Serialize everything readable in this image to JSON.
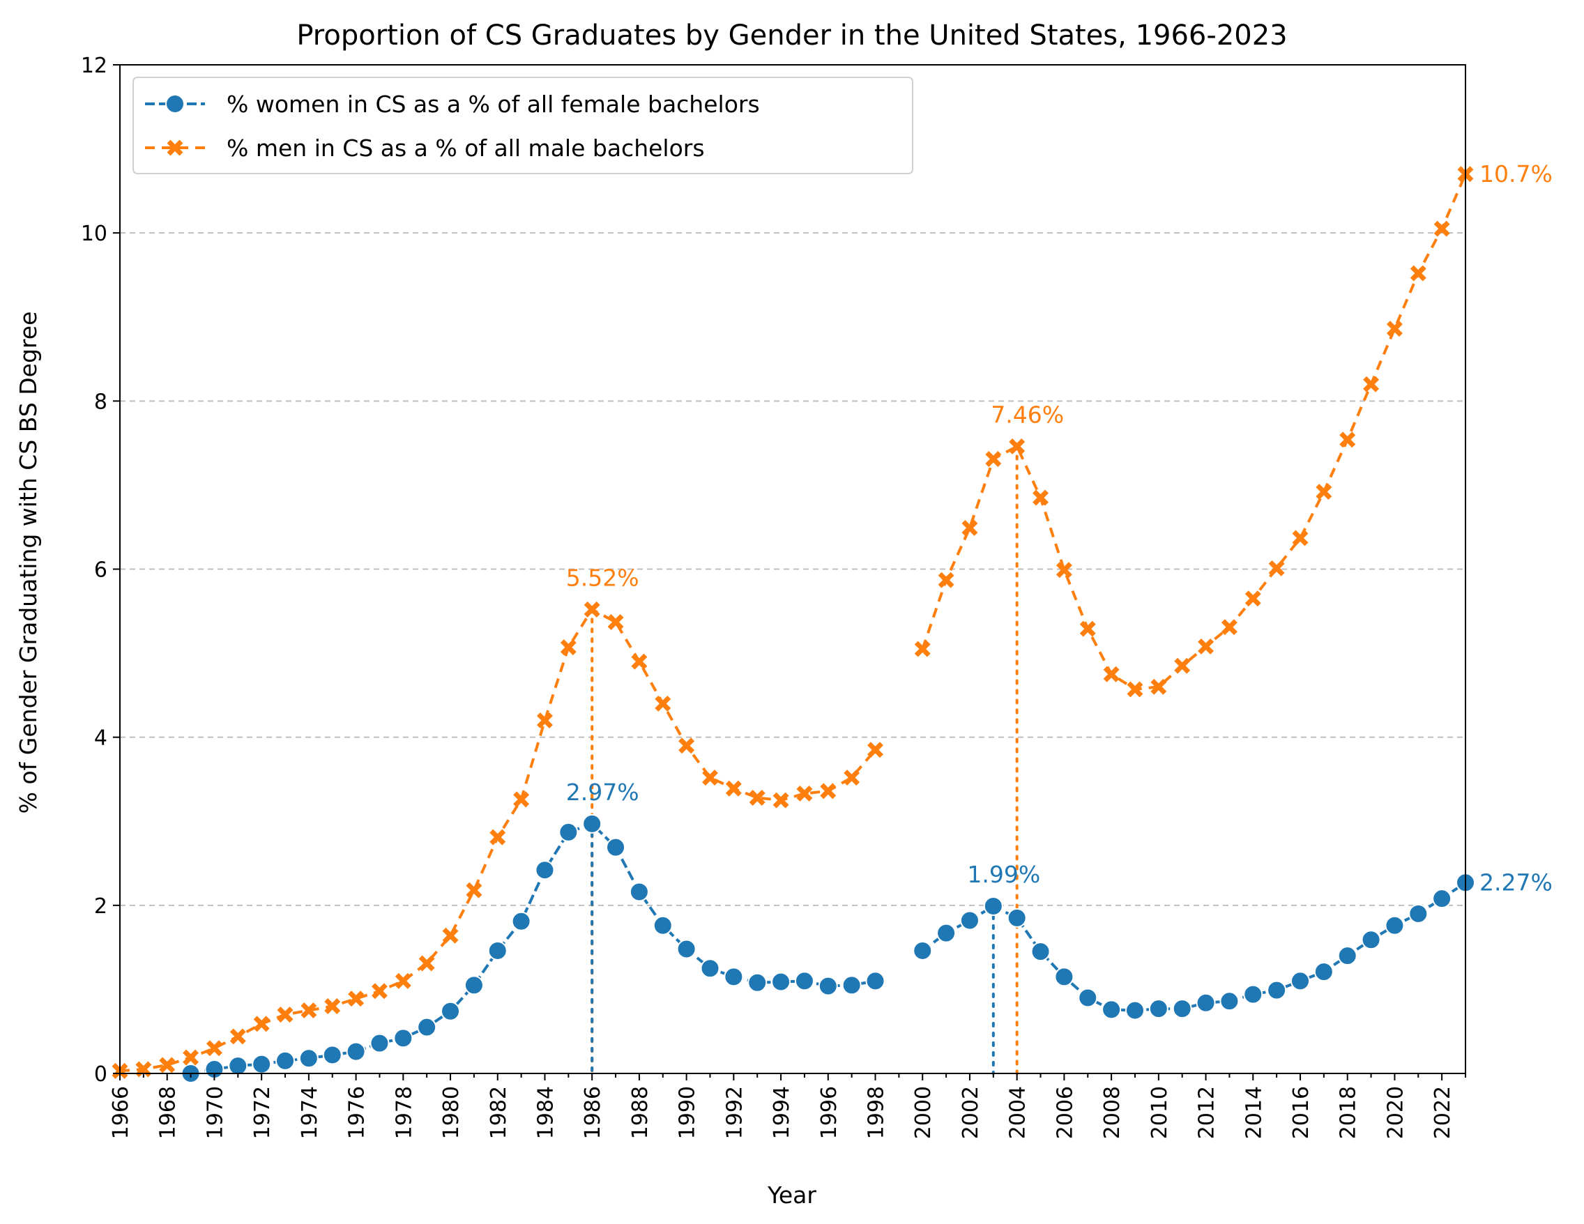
{
  "chart_data": {
    "type": "line",
    "title": "Proportion of CS Graduates by Gender in the United States, 1966-2023",
    "xlabel": "Year",
    "ylabel": "% of Gender Graduating with CS BS Degree",
    "xlim": [
      1966,
      2023
    ],
    "ylim": [
      0,
      12
    ],
    "yticks": [
      0,
      2,
      4,
      6,
      8,
      10,
      12
    ],
    "xticks": [
      1966,
      1968,
      1970,
      1972,
      1974,
      1976,
      1978,
      1980,
      1982,
      1984,
      1986,
      1988,
      1990,
      1992,
      1994,
      1996,
      1998,
      2000,
      2002,
      2004,
      2006,
      2008,
      2010,
      2012,
      2014,
      2016,
      2018,
      2020,
      2022
    ],
    "grid": "horizontal dashed",
    "legend_position": "top-left",
    "series": [
      {
        "name": "% women in CS as a % of all female bachelors",
        "color": "#1f77b4",
        "marker": "circle",
        "x": [
          1969,
          1970,
          1971,
          1972,
          1973,
          1974,
          1975,
          1976,
          1977,
          1978,
          1979,
          1980,
          1981,
          1982,
          1983,
          1984,
          1985,
          1986,
          1987,
          1988,
          1989,
          1990,
          1991,
          1992,
          1993,
          1994,
          1995,
          1996,
          1997,
          1998,
          null,
          2000,
          2001,
          2002,
          2003,
          2004,
          2005,
          2006,
          2007,
          2008,
          2009,
          2010,
          2011,
          2012,
          2013,
          2014,
          2015,
          2016,
          2017,
          2018,
          2019,
          2020,
          2021,
          2022,
          2023
        ],
        "y": [
          0.0,
          0.05,
          0.09,
          0.11,
          0.15,
          0.18,
          0.22,
          0.26,
          0.36,
          0.42,
          0.55,
          0.74,
          1.05,
          1.46,
          1.81,
          2.42,
          2.87,
          2.97,
          2.69,
          2.16,
          1.76,
          1.48,
          1.25,
          1.15,
          1.08,
          1.09,
          1.1,
          1.04,
          1.05,
          1.1,
          null,
          1.46,
          1.67,
          1.82,
          1.99,
          1.85,
          1.45,
          1.15,
          0.9,
          0.76,
          0.75,
          0.77,
          0.77,
          0.84,
          0.86,
          0.94,
          0.99,
          1.1,
          1.21,
          1.4,
          1.59,
          1.76,
          1.9,
          2.08,
          2.27
        ]
      },
      {
        "name": "% men in CS as a % of all male bachelors",
        "color": "#ff7f0e",
        "marker": "x",
        "x": [
          1966,
          1967,
          1968,
          1969,
          1970,
          1971,
          1972,
          1973,
          1974,
          1975,
          1976,
          1977,
          1978,
          1979,
          1980,
          1981,
          1982,
          1983,
          1984,
          1985,
          1986,
          1987,
          1988,
          1989,
          1990,
          1991,
          1992,
          1993,
          1994,
          1995,
          1996,
          1997,
          1998,
          null,
          2000,
          2001,
          2002,
          2003,
          2004,
          2005,
          2006,
          2007,
          2008,
          2009,
          2010,
          2011,
          2012,
          2013,
          2014,
          2015,
          2016,
          2017,
          2018,
          2019,
          2020,
          2021,
          2022,
          2023
        ],
        "y": [
          0.03,
          0.05,
          0.1,
          0.19,
          0.3,
          0.44,
          0.59,
          0.7,
          0.75,
          0.8,
          0.89,
          0.98,
          1.1,
          1.31,
          1.64,
          2.18,
          2.81,
          3.26,
          4.2,
          5.07,
          5.52,
          5.37,
          4.9,
          4.4,
          3.9,
          3.52,
          3.39,
          3.28,
          3.25,
          3.33,
          3.36,
          3.52,
          3.85,
          null,
          5.05,
          5.87,
          6.49,
          7.31,
          7.46,
          6.85,
          5.99,
          5.29,
          4.75,
          4.57,
          4.6,
          4.85,
          5.08,
          5.31,
          5.65,
          6.01,
          6.37,
          6.92,
          7.54,
          8.2,
          8.86,
          9.52,
          10.05,
          10.7
        ]
      }
    ],
    "annotations": [
      {
        "text": "5.52%",
        "x": 1986,
        "y": 5.52,
        "series": 1
      },
      {
        "text": "2.97%",
        "x": 1986,
        "y": 2.97,
        "series": 0
      },
      {
        "text": "7.46%",
        "x": 2004,
        "y": 7.46,
        "series": 1
      },
      {
        "text": "1.99%",
        "x": 2003,
        "y": 1.99,
        "series": 0
      },
      {
        "text": "10.7%",
        "x": 2023,
        "y": 10.7,
        "series": 1
      },
      {
        "text": "2.27%",
        "x": 2023,
        "y": 2.27,
        "series": 0
      }
    ],
    "peak_markers": [
      {
        "x": 1986,
        "y": 5.52,
        "series": 1
      },
      {
        "x": 1986,
        "y": 2.97,
        "series": 0
      },
      {
        "x": 2004,
        "y": 7.46,
        "series": 1
      },
      {
        "x": 2003,
        "y": 1.99,
        "series": 0
      }
    ]
  }
}
